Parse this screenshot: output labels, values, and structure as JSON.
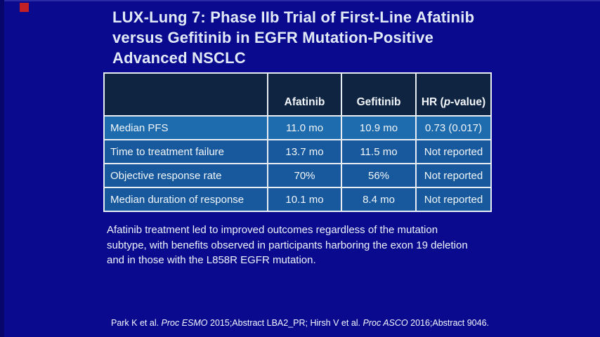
{
  "slide": {
    "colors": {
      "background": "#0a0a8f",
      "accent_red": "#c32026",
      "table_header_bg": "#0e2440",
      "table_row_bg": "#17599c",
      "table_border": "#e8edf3",
      "text": "#eef3fb"
    },
    "title_lines": [
      "LUX-Lung 7: Phase IIb Trial of First-Line Afatinib",
      "versus Gefitinib in EGFR Mutation-Positive",
      "Advanced NSCLC"
    ],
    "table": {
      "header": {
        "corner": "",
        "afatinib": "Afatinib",
        "gefitinib": "Gefitinib",
        "hr_prefix": "HR (",
        "hr_italic": "p",
        "hr_suffix": "-value)"
      },
      "rows": [
        {
          "label": "Median PFS",
          "afatinib": "11.0 mo",
          "gefitinib": "10.9 mo",
          "hr": "0.73 (0.017)"
        },
        {
          "label": "Time to treatment failure",
          "afatinib": "13.7 mo",
          "gefitinib": "11.5 mo",
          "hr": "Not reported"
        },
        {
          "label": "Objective response rate",
          "afatinib": "70%",
          "gefitinib": "56%",
          "hr": "Not reported"
        },
        {
          "label": "Median duration of response",
          "afatinib": "10.1 mo",
          "gefitinib": "8.4 mo",
          "hr": "Not reported"
        }
      ]
    },
    "summary_lines": [
      "Afatinib treatment led to improved outcomes regardless of the mutation",
      "subtype, with benefits observed in participants harboring the exon 19 deletion",
      "and in those with the L858R EGFR mutation."
    ],
    "citation": {
      "part1": "Park K et al. ",
      "italic1": "Proc ESMO",
      "part2": " 2015;Abstract LBA2_PR; Hirsh V et al. ",
      "italic2": "Proc ASCO",
      "part3": " 2016;Abstract 9046."
    }
  }
}
